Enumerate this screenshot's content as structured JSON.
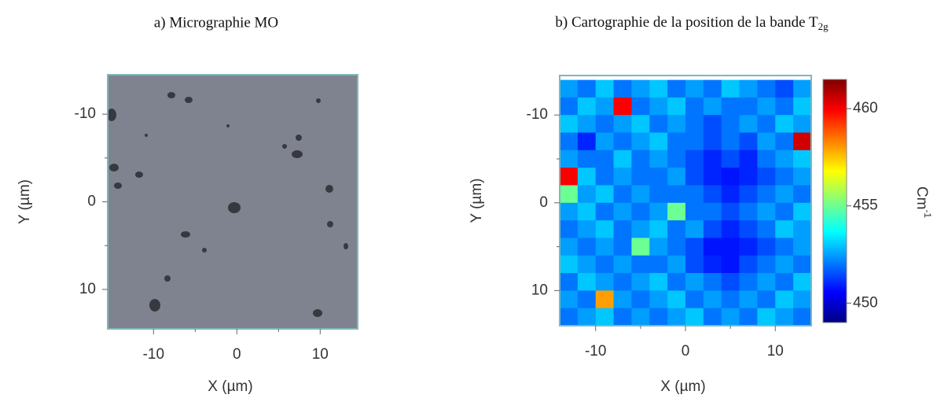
{
  "chart_data": [
    {
      "type": "image",
      "title": "a) Micrographie MO",
      "xlabel": "X (µm)",
      "ylabel": "Y (µm)",
      "xlim": [
        -15.5,
        14.5
      ],
      "ylim": [
        -14.5,
        14.5
      ],
      "xticks": [
        -10,
        0,
        10
      ],
      "yticks": [
        -10,
        0,
        10
      ],
      "minorticks": [
        -5,
        5
      ],
      "color": "#7f838f"
    },
    {
      "type": "heatmap",
      "title": "b) Cartographie de la position de la bande T",
      "title_sub": "2g",
      "xlabel": "X (µm)",
      "ylabel": "Y (µm)",
      "xlim": [
        -14,
        14
      ],
      "ylim": [
        -14.5,
        14
      ],
      "xticks": [
        -10,
        0,
        10
      ],
      "yticks": [
        -10,
        0,
        10
      ],
      "minorticks": [
        -5,
        5
      ],
      "colormap": "jet",
      "clim": [
        449,
        461.5
      ],
      "cticks": [
        450,
        455,
        460
      ],
      "colorbar_label": "Cm",
      "colorbar_label_sup": "-1",
      "x": [
        -13,
        -11,
        -9,
        -7,
        -5,
        -3,
        -1,
        1,
        3,
        5,
        7,
        9,
        11,
        13
      ],
      "y": [
        -13,
        -11,
        -9,
        -7,
        -5,
        -3,
        -1,
        1,
        3,
        5,
        7,
        9,
        11,
        13
      ],
      "z": [
        [
          452.5,
          452,
          453,
          452,
          452.5,
          453,
          452,
          452.5,
          452,
          453,
          452.5,
          452,
          451.5,
          452.5
        ],
        [
          452,
          453,
          452.5,
          460,
          452,
          452.5,
          453,
          452,
          452.5,
          452,
          452,
          452.5,
          452,
          453
        ],
        [
          453,
          452.5,
          452,
          452.5,
          453,
          452,
          452.5,
          452,
          451.5,
          452,
          452.5,
          452,
          453,
          452.5
        ],
        [
          452,
          451,
          452.5,
          452,
          452.5,
          453,
          452,
          452,
          451.5,
          452,
          451.5,
          452.5,
          452,
          460.5
        ],
        [
          452.5,
          452,
          452,
          453,
          452,
          452.5,
          452,
          451.5,
          451,
          451.5,
          451,
          452,
          452.5,
          453
        ],
        [
          460,
          453,
          452,
          452.5,
          452,
          452,
          452.5,
          451.5,
          451,
          450.8,
          451,
          451.5,
          452,
          452.5
        ],
        [
          455,
          452.5,
          453,
          452,
          452.5,
          452,
          452,
          452,
          451.5,
          451,
          451.5,
          452,
          452.5,
          452
        ],
        [
          452.5,
          453,
          452,
          452.5,
          452,
          452.5,
          455,
          452,
          452,
          451.5,
          452,
          452.5,
          452,
          453
        ],
        [
          452,
          452.5,
          453,
          452,
          452.5,
          453,
          452,
          452.5,
          451.5,
          451,
          451.5,
          452,
          453,
          452.5
        ],
        [
          452.5,
          452,
          452.5,
          452,
          455,
          452.5,
          452,
          451.5,
          450.8,
          450.8,
          451,
          451.5,
          452,
          452.5
        ],
        [
          453,
          452.5,
          452,
          452.5,
          452,
          452,
          452.5,
          451.5,
          451,
          450.8,
          451.5,
          452,
          452.5,
          452
        ],
        [
          452,
          453,
          452.5,
          452,
          452.5,
          453,
          452,
          452.5,
          452,
          451.5,
          452,
          452.5,
          452,
          453
        ],
        [
          452.5,
          452,
          458,
          452.5,
          452,
          452.5,
          453,
          452,
          452.5,
          452,
          452.5,
          452,
          453,
          452.5
        ],
        [
          452,
          452.5,
          453,
          452,
          452.5,
          452,
          452.5,
          453,
          452,
          452.5,
          452,
          453,
          452.5,
          452
        ]
      ]
    }
  ]
}
